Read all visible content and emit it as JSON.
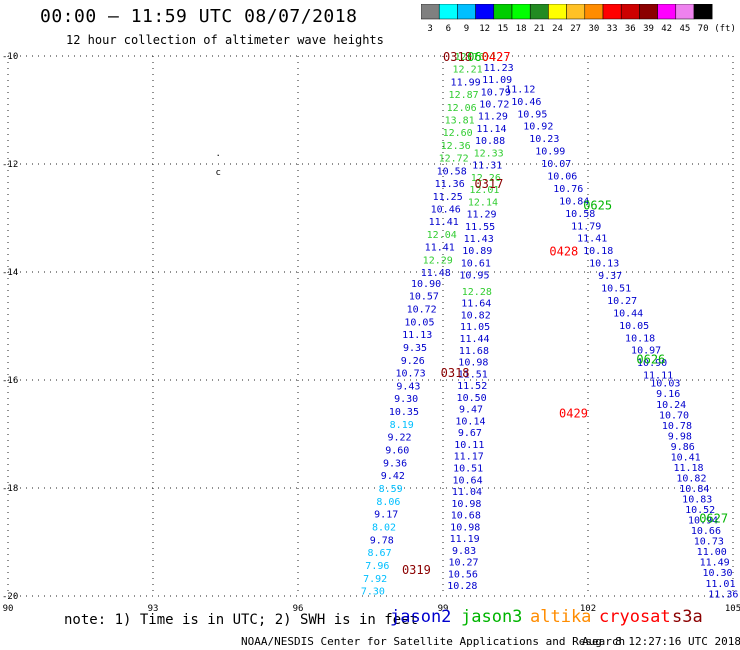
{
  "header": {
    "title": "00:00 – 11:59 UTC 08/07/2018",
    "subtitle": "12 hour collection of altimeter wave heights"
  },
  "colorbar": {
    "colors": [
      "#808080",
      "#00ffff",
      "#00bfff",
      "#0000ff",
      "#00cd00",
      "#00ff00",
      "#228b22",
      "#ffff00",
      "#ffc125",
      "#ff8c00",
      "#ff0000",
      "#cd0000",
      "#8b0000",
      "#ff00ff",
      "#ee82ee",
      "#000000"
    ],
    "labels": [
      "3",
      "6",
      "9",
      "12",
      "15",
      "18",
      "21",
      "24",
      "27",
      "30",
      "33",
      "36",
      "39",
      "42",
      "45",
      "70"
    ],
    "unit": "(ft)"
  },
  "chart_data": {
    "type": "scatter",
    "xlim": [
      90,
      105
    ],
    "ylim": [
      -20,
      -10
    ],
    "xticks": [
      "90",
      "93",
      "96",
      "99",
      "102",
      "105"
    ],
    "yticks": [
      "-10",
      "-12",
      "-14",
      "-16",
      "-18",
      "-20"
    ],
    "grid": true,
    "satellite_colors": {
      "jason2": "#0000cd",
      "jason3": "#00b400",
      "altika": "#ff8c00",
      "cryosat": "#ff0000",
      "s3a": "#8b0000"
    },
    "value_colors": {
      "light": "#00bfff",
      "mid": "#0000cd",
      "green": "#32cd32"
    },
    "time_labels": [
      {
        "text": "0318",
        "x": 99.3,
        "y": -10.0,
        "sat": "s3a"
      },
      {
        "text": "0604",
        "x": 99.8,
        "y": -10.0,
        "sat": "jason3"
      },
      {
        "text": "0427",
        "x": 100.1,
        "y": -10.0,
        "sat": "cryosat"
      },
      {
        "text": "0317",
        "x": 99.95,
        "y": -12.35,
        "sat": "s3a"
      },
      {
        "text": "0625",
        "x": 102.2,
        "y": -12.75,
        "sat": "jason3"
      },
      {
        "text": "0428",
        "x": 101.5,
        "y": -13.6,
        "sat": "cryosat"
      },
      {
        "text": "0318",
        "x": 99.25,
        "y": -15.85,
        "sat": "s3a"
      },
      {
        "text": "0626",
        "x": 103.3,
        "y": -15.6,
        "sat": "jason3"
      },
      {
        "text": "0429",
        "x": 101.7,
        "y": -16.6,
        "sat": "cryosat"
      },
      {
        "text": "0627",
        "x": 104.6,
        "y": -18.55,
        "sat": "jason3"
      },
      {
        "text": "0319",
        "x": 98.45,
        "y": -19.5,
        "sat": "s3a"
      }
    ],
    "markers": [
      {
        "text": ".",
        "x": 94.35,
        "y": -11.85
      },
      {
        "text": "c",
        "x": 94.35,
        "y": -12.2
      }
    ],
    "series": [
      {
        "name": "jason3",
        "color": "#32cd32",
        "start": [
          99.55,
          -10.0
        ],
        "end": [
          98.85,
          -14.0
        ],
        "values": [
          "12.76",
          "12.21",
          "11.99",
          "12.87",
          "12.06",
          "13.81",
          "12.60",
          "12.36",
          "12.72",
          "10.58",
          "11.36",
          "11.25",
          "10.46",
          "11.41",
          "12.04",
          "11.41",
          "12.29",
          "11.48"
        ],
        "vcolors": [
          "g",
          "g",
          "m",
          "g",
          "g",
          "g",
          "g",
          "g",
          "g",
          "m",
          "m",
          "m",
          "m",
          "m",
          "g",
          "m",
          "g",
          "m"
        ]
      },
      {
        "name": "s3a",
        "color": "#0000cd",
        "start": [
          98.65,
          -14.2
        ],
        "end": [
          97.55,
          -19.9
        ],
        "values": [
          "10.90",
          "10.57",
          "10.72",
          "10.05",
          "11.13",
          "9.35",
          "9.26",
          "10.73",
          "9.43",
          "9.30",
          "10.35",
          "8.19",
          "9.22",
          "9.60",
          "9.36",
          "9.42",
          "8.59",
          "8.06",
          "9.17",
          "8.02",
          "9.78",
          "8.67",
          "7.96",
          "7.92",
          "7.30"
        ],
        "vcolors": [
          "m",
          "m",
          "m",
          "m",
          "m",
          "m",
          "m",
          "m",
          "m",
          "m",
          "m",
          "l",
          "m",
          "m",
          "m",
          "m",
          "l",
          "l",
          "m",
          "l",
          "m",
          "l",
          "l",
          "l",
          "l"
        ]
      },
      {
        "name": "jason3-b",
        "color": "#0000cd",
        "start": [
          100.15,
          -10.2
        ],
        "end": [
          99.65,
          -14.05
        ],
        "values": [
          "11.23",
          "11.09",
          "10.79",
          "10.72",
          "11.29",
          "11.14",
          "10.88",
          "12.33",
          "11.31",
          "12.26",
          "12.01",
          "12.14",
          "11.29",
          "11.55",
          "11.43",
          "10.89",
          "10.61",
          "10.95"
        ],
        "vcolors": [
          "m",
          "m",
          "m",
          "m",
          "m",
          "m",
          "m",
          "g",
          "m",
          "g",
          "g",
          "g",
          "m",
          "m",
          "m",
          "m",
          "m",
          "m"
        ]
      },
      {
        "name": "cryosat",
        "color": "#0000cd",
        "start": [
          99.7,
          -14.35
        ],
        "end": [
          99.4,
          -19.8
        ],
        "values": [
          "12.28",
          "11.64",
          "10.82",
          "11.05",
          "11.44",
          "11.68",
          "10.98",
          "11.51",
          "11.52",
          "10.50",
          "9.47",
          "10.14",
          "9.67",
          "10.11",
          "11.17",
          "10.51",
          "10.64",
          "11.04",
          "10.98",
          "10.68",
          "10.98",
          "11.19",
          "9.83",
          "10.27",
          "10.56",
          "10.28"
        ],
        "vcolors": [
          "g",
          "m",
          "m",
          "m",
          "m",
          "m",
          "m",
          "m",
          "m",
          "m",
          "m",
          "m",
          "m",
          "m",
          "m",
          "m",
          "m",
          "m",
          "m",
          "m",
          "m",
          "m",
          "m",
          "m",
          "m",
          "m"
        ]
      },
      {
        "name": "altika",
        "color": "#0000cd",
        "start": [
          100.6,
          -10.6
        ],
        "end": [
          103.45,
          -15.9
        ],
        "values": [
          "11.12",
          "10.46",
          "10.95",
          "10.92",
          "10.23",
          "10.99",
          "10.07",
          "10.06",
          "10.76",
          "10.84",
          "10.58",
          "11.79",
          "11.41",
          "10.18",
          "10.13",
          "9.37",
          "10.51",
          "10.27",
          "10.44",
          "10.05",
          "10.18",
          "10.97",
          "10.90",
          "11.11"
        ],
        "vcolors": [
          "m",
          "m",
          "m",
          "m",
          "m",
          "m",
          "m",
          "m",
          "m",
          "m",
          "m",
          "m",
          "m",
          "m",
          "m",
          "m",
          "m",
          "m",
          "m",
          "m",
          "m",
          "m",
          "m",
          "m"
        ]
      },
      {
        "name": "jason2",
        "color": "#0000cd",
        "start": [
          103.6,
          -16.05
        ],
        "end": [
          104.8,
          -19.95
        ],
        "values": [
          "10.03",
          "9.16",
          "10.24",
          "10.70",
          "10.78",
          "9.98",
          "9.86",
          "10.41",
          "11.18",
          "10.82",
          "10.84",
          "10.83",
          "10.52",
          "10.94",
          "10.66",
          "10.73",
          "11.00",
          "11.49",
          "10.30",
          "11.01",
          "11.36"
        ],
        "vcolors": [
          "m",
          "m",
          "m",
          "m",
          "m",
          "m",
          "m",
          "m",
          "m",
          "m",
          "m",
          "m",
          "m",
          "m",
          "m",
          "m",
          "m",
          "m",
          "m",
          "m",
          "m"
        ]
      }
    ]
  },
  "note": "note: 1) Time is in UTC; 2) SWH is in feet",
  "legend": [
    {
      "label": "jason2",
      "color": "#0000cd"
    },
    {
      "label": "jason3",
      "color": "#00b400"
    },
    {
      "label": "altika",
      "color": "#ff8c00"
    },
    {
      "label": "cryosat",
      "color": "#ff0000"
    },
    {
      "label": "s3a",
      "color": "#8b0000"
    }
  ],
  "footer": {
    "source": "NOAA/NESDIS Center for Satellite Applications and Research",
    "timestamp": "Aug  8 12:27:16 UTC 2018"
  }
}
